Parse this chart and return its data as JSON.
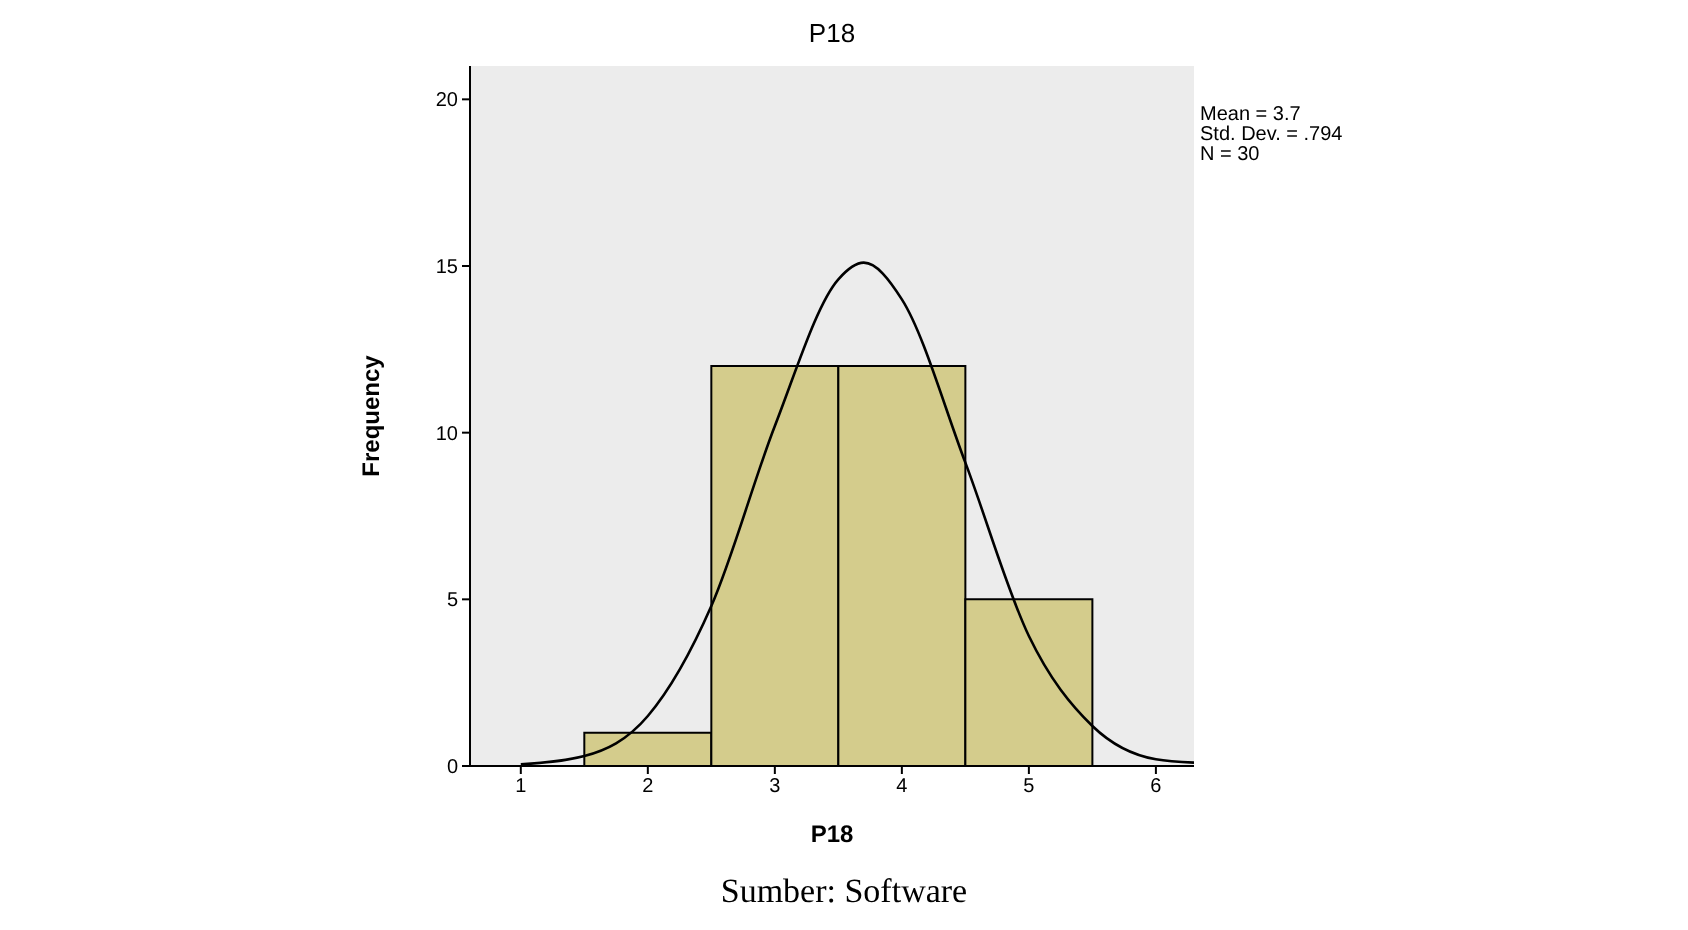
{
  "chart_data": {
    "type": "histogram",
    "title": "P18",
    "xlabel": "P18",
    "ylabel": "Frequency",
    "bins": [
      1.5,
      2.5,
      3.5,
      4.5,
      5.5
    ],
    "values": [
      1,
      12,
      12,
      5
    ],
    "color": "#d4cc8c",
    "series": [
      {
        "type": "line",
        "x": [
          1,
          1.5,
          2,
          2.5,
          3,
          3.5,
          3.7,
          4,
          4.5,
          5,
          5.5,
          6,
          6.3
        ],
        "values": [
          0.05,
          0.3,
          1.5,
          4.8,
          10.2,
          14.6,
          15.1,
          14,
          9.1,
          3.9,
          1.2,
          0.2,
          0.1
        ],
        "color": "#000000"
      }
    ],
    "xlim": [
      0.6,
      6.3
    ],
    "xticks": [
      1,
      2,
      3,
      4,
      5,
      6
    ],
    "ylim": [
      0,
      21
    ],
    "yticks": [
      0,
      5,
      10,
      15,
      20
    ],
    "legend": false,
    "marker": "none",
    "line_style": "solid",
    "annotations": [
      "Mean = 3.7",
      "Std. Dev. = .794",
      "N = 30",
      "Sumber: Software"
    ]
  }
}
